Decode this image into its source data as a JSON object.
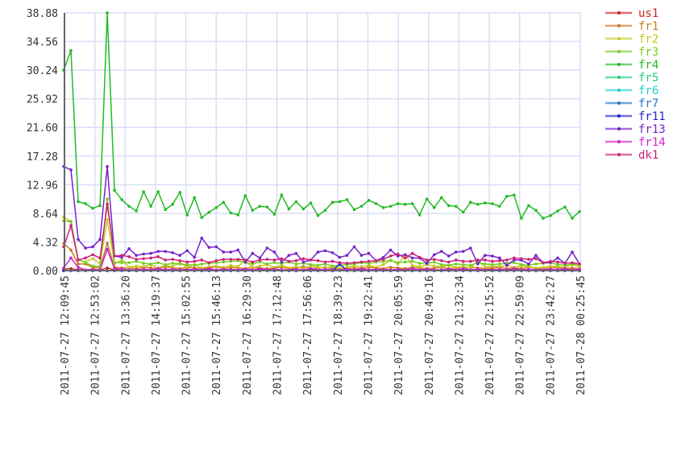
{
  "chart_data": {
    "type": "line",
    "title": "",
    "xlabel": "",
    "ylabel": "",
    "ylim": [
      0,
      38.88
    ],
    "y_ticks": [
      "0.00",
      "4.32",
      "8.64",
      "12.96",
      "17.28",
      "21.60",
      "25.92",
      "30.24",
      "34.56",
      "38.88"
    ],
    "x_ticks": [
      "2011-07-27 12:09:45",
      "2011-07-27 12:53:02",
      "2011-07-27 13:36:20",
      "2011-07-27 14:19:37",
      "2011-07-27 15:02:55",
      "2011-07-27 15:46:13",
      "2011-07-27 16:29:30",
      "2011-07-27 17:12:48",
      "2011-07-27 17:56:06",
      "2011-07-27 18:39:23",
      "2011-07-27 19:22:41",
      "2011-07-27 20:05:59",
      "2011-07-27 20:49:16",
      "2011-07-27 21:32:34",
      "2011-07-27 22:15:52",
      "2011-07-27 22:59:09",
      "2011-07-27 23:42:27",
      "2011-07-28 00:25:45"
    ],
    "grid": true,
    "legend_placement": "right",
    "series": [
      {
        "name": "us1",
        "color": "#cc2222",
        "values": [
          0.2,
          0.3,
          0.1,
          0.1,
          0.2,
          0.1,
          0.4,
          0.1,
          0.2,
          0.1,
          0.1,
          0.2,
          0.1,
          0.1,
          0.2,
          0.1,
          0.1,
          0.2,
          0.1,
          0.1,
          0.2,
          0.1,
          0.1,
          0.2,
          0.1,
          0.1,
          0.2,
          0.1,
          0.1,
          0.2,
          0.1,
          0.1,
          0.2,
          0.1,
          0.1,
          0.2,
          0.1,
          0.1,
          0.2,
          0.1,
          0.1,
          0.2,
          0.1,
          0.1,
          0.2,
          0.1,
          0.1,
          0.2,
          0.1,
          0.1,
          0.2,
          0.1,
          0.1,
          0.2,
          0.1,
          0.1,
          0.2,
          0.1,
          0.1,
          0.2,
          0.1,
          0.1,
          0.2,
          0.1,
          0.1,
          0.2,
          0.1,
          0.1,
          0.2,
          0.1,
          0.1,
          0.2
        ]
      },
      {
        "name": "fr1",
        "color": "#cc7722",
        "values": [
          4.1,
          3.1,
          1.0,
          1.0,
          0.5,
          0.4,
          4.1,
          0.5,
          0.4,
          0.4,
          0.3,
          0.5,
          0.4,
          0.3,
          0.6,
          0.4,
          0.3,
          0.5,
          0.4,
          0.3,
          0.4,
          0.6,
          0.3,
          0.5,
          0.4,
          0.3,
          0.5,
          0.4,
          0.3,
          0.4,
          0.5,
          0.3,
          0.4,
          0.6,
          0.3,
          0.4,
          0.5,
          0.3,
          0.2,
          0.3,
          0.4,
          0.3,
          0.5,
          0.4,
          0.3,
          0.5,
          0.4,
          0.3,
          0.5,
          0.4,
          0.3,
          0.4,
          0.5,
          0.3,
          0.4,
          0.3,
          0.5,
          0.4,
          0.3,
          0.4,
          0.5,
          0.3,
          0.4,
          0.3,
          0.5,
          0.4,
          0.3,
          0.4,
          0.5,
          0.3,
          0.4,
          0.3
        ]
      },
      {
        "name": "fr2",
        "color": "#c8c820",
        "values": [
          8.1,
          7.4,
          1.6,
          1.3,
          1.8,
          1.1,
          7.7,
          1.0,
          1.6,
          0.5,
          0.7,
          0.6,
          0.9,
          0.4,
          0.8,
          0.6,
          1.2,
          0.5,
          0.9,
          0.4,
          0.6,
          0.7,
          0.5,
          0.8,
          0.6,
          1.6,
          0.4,
          0.7,
          0.9,
          0.5,
          0.8,
          0.4,
          0.6,
          0.3,
          0.7,
          0.5,
          0.4,
          0.6,
          0.3,
          0.5,
          0.7,
          0.6,
          0.8,
          0.5,
          0.9,
          1.6,
          1.0,
          2.4,
          0.8,
          0.6,
          0.9,
          0.7,
          0.6,
          0.8,
          0.5,
          0.6,
          0.4,
          1.5,
          0.5,
          0.7,
          0.6,
          0.8,
          0.5,
          0.7,
          0.6,
          0.4,
          0.5,
          0.7,
          0.6,
          0.5,
          0.9,
          0.6
        ]
      },
      {
        "name": "fr3",
        "color": "#77cc22",
        "values": [
          7.5,
          7.4,
          1.7,
          1.2,
          0.7,
          0.6,
          10.8,
          1.2,
          1.2,
          1.2,
          1.4,
          1.1,
          1.0,
          1.2,
          0.9,
          1.1,
          1.0,
          0.9,
          0.8,
          1.0,
          1.1,
          1.2,
          1.3,
          1.4,
          1.5,
          1.2,
          1.0,
          1.3,
          1.0,
          1.2,
          1.1,
          1.3,
          1.0,
          1.1,
          0.9,
          0.8,
          1.0,
          0.7,
          0.8,
          0.9,
          1.0,
          1.2,
          1.1,
          1.3,
          1.4,
          1.5,
          1.2,
          1.3,
          1.4,
          1.1,
          1.1,
          1.3,
          0.9,
          0.8,
          1.0,
          0.9,
          0.8,
          1.2,
          1.0,
          0.9,
          1.0,
          1.1,
          1.2,
          0.9,
          0.8,
          1.0,
          1.1,
          1.2,
          0.9,
          0.8,
          1.0,
          0.9
        ]
      },
      {
        "name": "fr4",
        "color": "#22bb22",
        "values": [
          30.24,
          33.2,
          10.4,
          10.1,
          9.4,
          9.8,
          38.88,
          12.1,
          10.7,
          9.7,
          9.0,
          11.9,
          9.7,
          11.9,
          9.2,
          10.0,
          11.8,
          8.4,
          11.0,
          8.0,
          8.8,
          9.5,
          10.3,
          8.7,
          8.4,
          11.3,
          9.1,
          9.7,
          9.6,
          8.5,
          11.4,
          9.3,
          10.4,
          9.3,
          10.2,
          8.3,
          9.1,
          10.3,
          10.4,
          10.7,
          9.2,
          9.7,
          10.6,
          10.1,
          9.5,
          9.7,
          10.1,
          10.0,
          10.1,
          8.4,
          10.8,
          9.5,
          11.0,
          9.8,
          9.7,
          8.8,
          10.3,
          10.0,
          10.2,
          10.1,
          9.7,
          11.2,
          11.4,
          7.9,
          9.8,
          9.1,
          7.9,
          8.3,
          9.0,
          9.6,
          7.9,
          8.9
        ]
      },
      {
        "name": "fr5",
        "color": "#22cc77",
        "values": [
          0,
          0,
          0,
          0,
          0,
          0,
          0,
          0,
          0,
          0,
          0,
          0,
          0,
          0,
          0,
          0,
          0,
          0,
          0,
          0,
          0,
          0,
          0,
          0,
          0,
          0,
          0,
          0,
          0,
          0,
          0,
          0,
          0,
          0,
          0,
          0,
          0,
          0,
          0,
          0,
          0,
          0,
          0,
          0,
          0,
          0,
          0,
          0,
          0,
          0,
          0,
          0,
          0,
          0,
          0,
          0,
          0,
          0,
          0,
          0,
          0,
          0,
          0,
          0,
          0,
          0,
          0,
          0,
          0,
          0,
          0,
          0
        ]
      },
      {
        "name": "fr6",
        "color": "#22cccc",
        "values": [
          0,
          0,
          0,
          0,
          0,
          0,
          0,
          0,
          0,
          0,
          0,
          0,
          0,
          0,
          0,
          0,
          0,
          0,
          0,
          0,
          0,
          0,
          0,
          0,
          0,
          0,
          0,
          0,
          0,
          0,
          0,
          0,
          0,
          0,
          0,
          0,
          0,
          0,
          0,
          0,
          0,
          0,
          0,
          0,
          0,
          0,
          0,
          0,
          0,
          0,
          0,
          0,
          0,
          0,
          0,
          0,
          0,
          0,
          0,
          0,
          0,
          0,
          0,
          0,
          0,
          0,
          0,
          0,
          0,
          0,
          0,
          0
        ]
      },
      {
        "name": "fr7",
        "color": "#2277cc",
        "values": [
          0,
          0,
          0,
          0,
          0,
          0,
          0,
          0,
          0,
          0,
          0,
          0,
          0,
          0,
          0,
          0,
          0,
          0,
          0,
          0,
          0,
          0,
          0,
          0,
          0,
          0,
          0,
          0,
          0,
          0,
          0,
          0,
          0,
          0,
          0,
          0,
          0,
          0,
          0,
          0,
          0,
          0,
          0,
          0,
          0,
          0,
          0,
          0,
          0,
          0,
          0,
          0,
          0,
          0,
          0,
          0,
          0,
          0,
          0,
          0,
          0,
          0,
          0,
          0,
          0,
          0,
          0,
          0,
          0,
          0,
          0,
          0
        ]
      },
      {
        "name": "fr11",
        "color": "#2222cc",
        "values": [
          0,
          0,
          0,
          0,
          0,
          0,
          0,
          0,
          0,
          0,
          0,
          0,
          0,
          0,
          0,
          0,
          0,
          0,
          0,
          0,
          0,
          0,
          0,
          0,
          0,
          0,
          0,
          0,
          0,
          0,
          0,
          0,
          0,
          0,
          0,
          0,
          0,
          0,
          1.0,
          0,
          0,
          0,
          0,
          0,
          0,
          0,
          0,
          0,
          0,
          0,
          0,
          0,
          0,
          0,
          0,
          0,
          0,
          0,
          0,
          0,
          0,
          0,
          0,
          0,
          0,
          0,
          0,
          0,
          0,
          0,
          0,
          0
        ]
      },
      {
        "name": "fr13",
        "color": "#7722cc",
        "values": [
          15.7,
          15.2,
          4.7,
          3.4,
          3.6,
          4.7,
          15.7,
          2.2,
          2.0,
          3.3,
          2.3,
          2.5,
          2.6,
          2.9,
          2.9,
          2.7,
          2.3,
          3.0,
          2.0,
          4.9,
          3.5,
          3.6,
          2.8,
          2.8,
          3.1,
          1.3,
          2.6,
          1.9,
          3.4,
          2.8,
          1.3,
          2.3,
          2.6,
          1.3,
          1.6,
          2.8,
          3.0,
          2.7,
          2.0,
          2.3,
          3.6,
          2.3,
          2.6,
          1.5,
          2.0,
          3.1,
          2.2,
          2.4,
          1.9,
          1.9,
          1.1,
          2.4,
          2.9,
          2.2,
          2.8,
          2.9,
          3.4,
          1.0,
          2.3,
          2.2,
          1.9,
          0.8,
          1.6,
          1.6,
          1.0,
          2.3,
          1.2,
          1.2,
          1.9,
          1.1,
          2.8,
          1.0
        ]
      },
      {
        "name": "fr14",
        "color": "#cc22cc",
        "values": [
          0.4,
          1.9,
          0.5,
          0.1,
          0.1,
          0.1,
          3.2,
          0.3,
          0.2,
          0.1,
          0.1,
          0.2,
          0.1,
          0.3,
          0.1,
          0.2,
          0.1,
          0.1,
          0.2,
          0.1,
          0.3,
          0.1,
          0.2,
          0.1,
          0.1,
          0.2,
          0.1,
          0.3,
          0.1,
          0.2,
          0.1,
          0.1,
          0.2,
          0.1,
          0.3,
          0.1,
          0.2,
          0.1,
          0.1,
          0.2,
          0.1,
          0.3,
          0.1,
          0.2,
          0.1,
          0.1,
          0.2,
          0.1,
          0.3,
          0.1,
          0.2,
          0.1,
          0.1,
          0.2,
          0.1,
          0.3,
          0.1,
          0.2,
          0.1,
          0.1,
          0.2,
          0.1,
          0.3,
          0.1,
          0.2,
          0.1,
          0.1,
          0.2,
          0.1,
          0.3,
          0.1,
          0.2
        ]
      },
      {
        "name": "dk1",
        "color": "#cc2277",
        "values": [
          3.6,
          6.8,
          1.6,
          1.9,
          2.4,
          1.9,
          10.0,
          2.2,
          2.3,
          2.1,
          1.7,
          1.8,
          1.9,
          2.1,
          1.6,
          1.7,
          1.5,
          1.3,
          1.4,
          1.6,
          1.2,
          1.5,
          1.7,
          1.7,
          1.7,
          1.6,
          1.3,
          1.6,
          1.7,
          1.6,
          1.8,
          1.4,
          1.5,
          1.8,
          1.6,
          1.5,
          1.3,
          1.4,
          1.2,
          1.1,
          1.2,
          1.3,
          1.4,
          1.5,
          1.7,
          2.2,
          2.5,
          1.9,
          2.6,
          2.0,
          1.6,
          1.7,
          1.5,
          1.3,
          1.6,
          1.4,
          1.4,
          1.6,
          1.6,
          1.4,
          1.5,
          1.6,
          1.9,
          1.8,
          1.7,
          1.8,
          1.2,
          1.4,
          1.3,
          1.1,
          1.2,
          1.0
        ]
      }
    ]
  }
}
